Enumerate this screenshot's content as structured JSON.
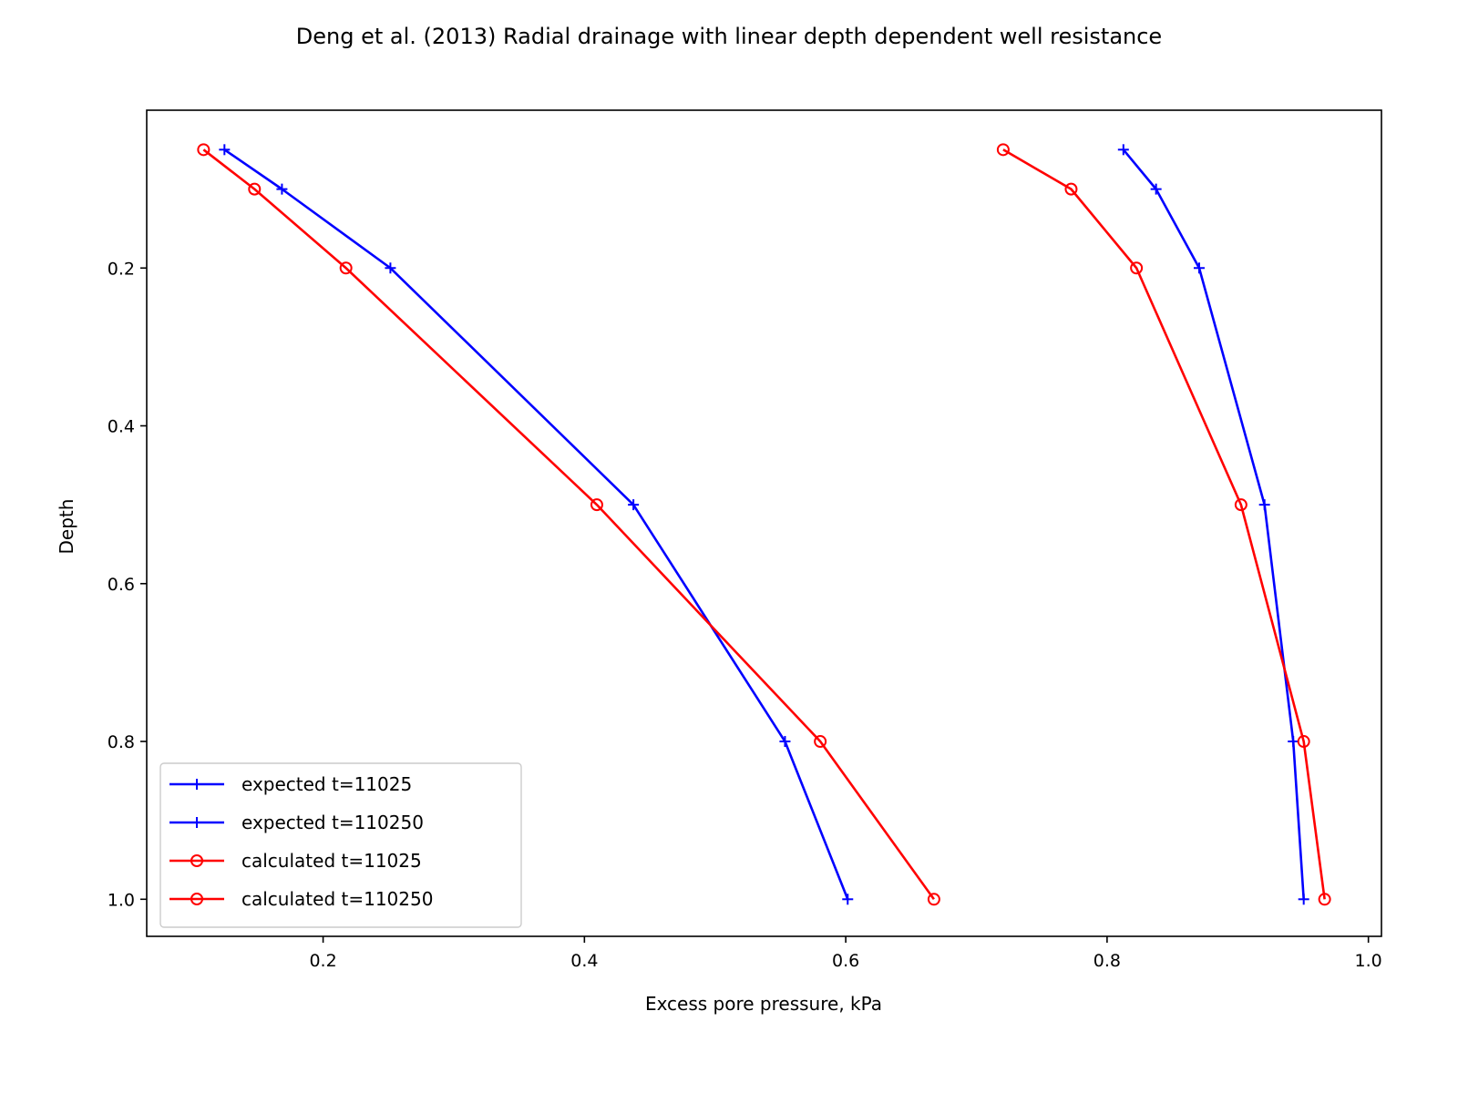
{
  "chart_data": {
    "type": "line",
    "title": "Deng et al. (2013) Radial drainage with linear depth dependent well resistance",
    "xlabel": "Excess pore pressure, kPa",
    "ylabel": "Depth",
    "xlim": [
      0.065,
      1.01
    ],
    "ylim": [
      1.047,
      0.0
    ],
    "y_inverted": true,
    "grid": false,
    "legend_position": "lower left",
    "xticks": [
      {
        "value": 0.2,
        "label": "0.2"
      },
      {
        "value": 0.4,
        "label": "0.4"
      },
      {
        "value": 0.6,
        "label": "0.6"
      },
      {
        "value": 0.8,
        "label": "0.8"
      },
      {
        "value": 1.0,
        "label": "1.0"
      }
    ],
    "yticks": [
      {
        "value": 0.2,
        "label": "0.2"
      },
      {
        "value": 0.4,
        "label": "0.4"
      },
      {
        "value": 0.6,
        "label": "0.6"
      },
      {
        "value": 0.8,
        "label": "0.8"
      },
      {
        "value": 1.0,
        "label": "1.0"
      }
    ],
    "series": [
      {
        "name": "expected t=11025",
        "color": "#0000ff",
        "marker": "plus",
        "x": [
          0.1245,
          0.1685,
          0.2515,
          0.4375,
          0.5535,
          0.6015
        ],
        "y": [
          0.05,
          0.1,
          0.2,
          0.5,
          0.8,
          1.0
        ]
      },
      {
        "name": "expected t=110250",
        "color": "#0000ff",
        "marker": "plus",
        "x": [
          0.8125,
          0.8375,
          0.8705,
          0.9205,
          0.9425,
          0.9505
        ],
        "y": [
          0.05,
          0.1,
          0.2,
          0.5,
          0.8,
          1.0
        ]
      },
      {
        "name": "calculated t=11025",
        "color": "#ff0000",
        "marker": "circle",
        "x": [
          0.1085,
          0.1475,
          0.2175,
          0.4095,
          0.5805,
          0.6675
        ],
        "y": [
          0.05,
          0.1,
          0.2,
          0.5,
          0.8,
          1.0
        ]
      },
      {
        "name": "calculated t=110250",
        "color": "#ff0000",
        "marker": "circle",
        "x": [
          0.7205,
          0.7725,
          0.8225,
          0.9025,
          0.9505,
          0.9665
        ],
        "y": [
          0.05,
          0.1,
          0.2,
          0.5,
          0.8,
          1.0
        ]
      }
    ]
  }
}
